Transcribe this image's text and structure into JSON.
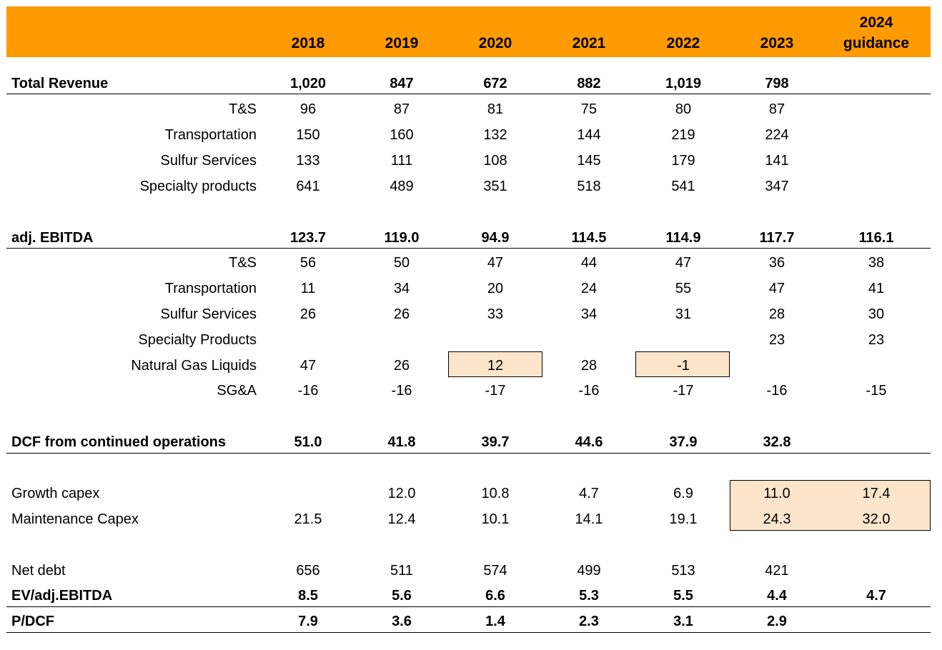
{
  "header": {
    "years": [
      "2018",
      "2019",
      "2020",
      "2021",
      "2022",
      "2023"
    ],
    "guidance_line1": "2024",
    "guidance_line2": "guidance"
  },
  "rows": [
    {
      "label": "Total Revenue",
      "values": [
        "1,020",
        "847",
        "672",
        "882",
        "1,019",
        "798",
        ""
      ]
    },
    {
      "label": "T&S",
      "values": [
        "96",
        "87",
        "81",
        "75",
        "80",
        "87",
        ""
      ]
    },
    {
      "label": "Transportation",
      "values": [
        "150",
        "160",
        "132",
        "144",
        "219",
        "224",
        ""
      ]
    },
    {
      "label": "Sulfur Services",
      "values": [
        "133",
        "111",
        "108",
        "145",
        "179",
        "141",
        ""
      ]
    },
    {
      "label": "Specialty products",
      "values": [
        "641",
        "489",
        "351",
        "518",
        "541",
        "347",
        ""
      ]
    },
    {
      "label": "adj. EBITDA",
      "values": [
        "123.7",
        "119.0",
        "94.9",
        "114.5",
        "114.9",
        "117.7",
        "116.1"
      ]
    },
    {
      "label": "T&S",
      "values": [
        "56",
        "50",
        "47",
        "44",
        "47",
        "36",
        "38"
      ]
    },
    {
      "label": "Transportation",
      "values": [
        "11",
        "34",
        "20",
        "24",
        "55",
        "47",
        "41"
      ]
    },
    {
      "label": "Sulfur Services",
      "values": [
        "26",
        "26",
        "33",
        "34",
        "31",
        "28",
        "30"
      ]
    },
    {
      "label": "Specialty Products",
      "values": [
        "",
        "",
        "",
        "",
        "",
        "23",
        "23"
      ]
    },
    {
      "label": "Natural Gas Liquids",
      "values": [
        "47",
        "26",
        "12",
        "28",
        "-1",
        "",
        ""
      ]
    },
    {
      "label": "SG&A",
      "values": [
        "-16",
        "-16",
        "-17",
        "-16",
        "-17",
        "-16",
        "-15"
      ]
    },
    {
      "label": "DCF from continued operations",
      "values": [
        "51.0",
        "41.8",
        "39.7",
        "44.6",
        "37.9",
        "32.8",
        ""
      ]
    },
    {
      "label": "Growth capex",
      "values": [
        "",
        "12.0",
        "10.8",
        "4.7",
        "6.9",
        "11.0",
        "17.4"
      ]
    },
    {
      "label": "Maintenance Capex",
      "values": [
        "21.5",
        "12.4",
        "10.1",
        "14.1",
        "19.1",
        "24.3",
        "32.0"
      ]
    },
    {
      "label": "Net debt",
      "values": [
        "656",
        "511",
        "574",
        "499",
        "513",
        "421",
        ""
      ]
    },
    {
      "label": "EV/adj.EBITDA",
      "values": [
        "8.5",
        "5.6",
        "6.6",
        "5.3",
        "5.5",
        "4.4",
        "4.7"
      ]
    },
    {
      "label": "P/DCF",
      "values": [
        "7.9",
        "3.6",
        "1.4",
        "2.3",
        "3.1",
        "2.9",
        ""
      ]
    }
  ]
}
